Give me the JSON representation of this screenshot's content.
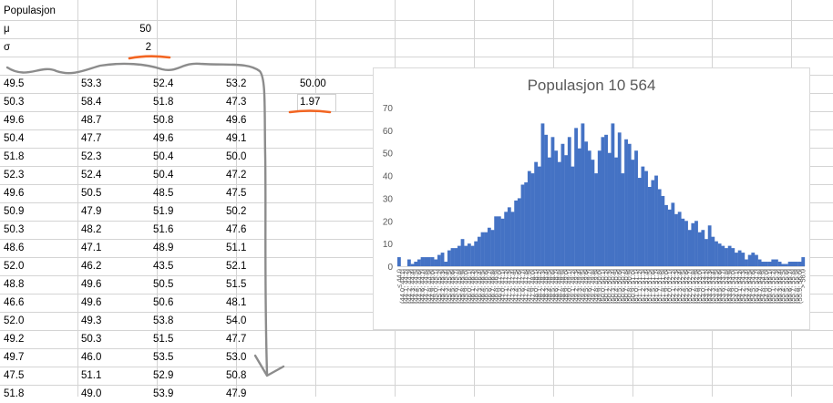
{
  "header": {
    "title_label": "Populasjon",
    "mu_label": "μ",
    "mu_value": "50",
    "sigma_label": "σ",
    "sigma_value": "2"
  },
  "table": {
    "rows": [
      [
        "49.5",
        "53.3",
        "52.4",
        "53.2"
      ],
      [
        "50.3",
        "58.4",
        "51.8",
        "47.3"
      ],
      [
        "49.6",
        "48.7",
        "50.8",
        "49.6"
      ],
      [
        "50.4",
        "47.7",
        "49.6",
        "49.1"
      ],
      [
        "51.8",
        "52.3",
        "50.4",
        "50.0"
      ],
      [
        "52.3",
        "52.4",
        "50.4",
        "47.2"
      ],
      [
        "49.6",
        "50.5",
        "48.5",
        "47.5"
      ],
      [
        "50.9",
        "47.9",
        "51.9",
        "50.2"
      ],
      [
        "50.3",
        "48.2",
        "51.6",
        "47.6"
      ],
      [
        "48.6",
        "47.1",
        "48.9",
        "51.1"
      ],
      [
        "52.0",
        "46.2",
        "43.5",
        "52.1"
      ],
      [
        "48.8",
        "49.6",
        "50.5",
        "51.5"
      ],
      [
        "46.6",
        "49.6",
        "50.6",
        "48.1"
      ],
      [
        "52.0",
        "49.3",
        "53.8",
        "54.0"
      ],
      [
        "49.2",
        "50.3",
        "51.5",
        "47.7"
      ],
      [
        "49.7",
        "46.0",
        "53.5",
        "53.0"
      ],
      [
        "47.5",
        "51.1",
        "52.9",
        "50.8"
      ],
      [
        "51.8",
        "49.0",
        "53.9",
        "47.9"
      ]
    ]
  },
  "stats": {
    "mean": "50.00",
    "sd": "1.97"
  },
  "annotation_colors": {
    "underline": "#f26522",
    "pencil_arrow": "#8c8c8c"
  },
  "chart_data": {
    "type": "bar",
    "title": "Populasjon 10 564",
    "color": "#4472c4",
    "ylim": [
      0,
      70
    ],
    "yticks": [
      "0",
      "10",
      "20",
      "30",
      "40",
      "50",
      "60",
      "70"
    ],
    "grid": false,
    "categories": [
      "≤ 44.0",
      "(44.0, 44.1]",
      "(44.1, 44.2]",
      "(44.2, 44.3]",
      "(44.3, 44.4]",
      "(44.4, 44.5]",
      "(44.5, 44.6]",
      "(44.6, 44.7]",
      "(44.7, 44.8]",
      "(44.8, 44.9]",
      "(44.9, 45.0]",
      "(45.0, 45.1]",
      "(45.1, 45.2]",
      "(45.2, 45.3]",
      "(45.3, 45.4]",
      "(45.4, 45.5]",
      "(45.5, 45.6]",
      "(45.6, 45.7]",
      "(45.7, 45.8]",
      "(45.8, 45.9]",
      "(45.9, 46.0]",
      "(46.0, 46.1]",
      "(46.1, 46.2]",
      "(46.2, 46.3]",
      "(46.3, 46.4]",
      "(46.4, 46.5]",
      "(46.5, 46.6]",
      "(46.6, 46.7]",
      "(46.7, 46.8]",
      "(46.8, 46.9]",
      "(46.9, 47.0]",
      "(47.0, 47.1]",
      "(47.1, 47.2]",
      "(47.2, 47.3]",
      "(47.3, 47.4]",
      "(47.4, 47.5]",
      "(47.5, 47.6]",
      "(47.6, 47.7]",
      "(47.7, 47.8]",
      "(47.8, 47.9]",
      "(47.9, 48.0]",
      "(48.0, 48.1]",
      "(48.1, 48.2]",
      "(48.2, 48.3]",
      "(48.3, 48.4]",
      "(48.4, 48.5]",
      "(48.5, 48.6]",
      "(48.6, 48.7]",
      "(48.7, 48.8]",
      "(48.8, 48.9]",
      "(48.9, 49.0]",
      "(49.0, 49.1]",
      "(49.1, 49.2]",
      "(49.2, 49.3]",
      "(49.3, 49.4]",
      "(49.4, 49.5]",
      "(49.5, 49.6]",
      "(49.6, 49.7]",
      "(49.7, 49.8]",
      "(49.8, 49.9]",
      "(49.9, 50.0]",
      "(50.0, 50.1]",
      "(50.1, 50.2]",
      "(50.2, 50.3]",
      "(50.3, 50.4]",
      "(50.4, 50.5]",
      "(50.5, 50.6]",
      "(50.6, 50.7]",
      "(50.7, 50.8]",
      "(50.8, 50.9]",
      "(50.9, 51.0]",
      "(51.0, 51.1]",
      "(51.1, 51.2]",
      "(51.2, 51.3]",
      "(51.3, 51.4]",
      "(51.4, 51.5]",
      "(51.5, 51.6]",
      "(51.6, 51.7]",
      "(51.7, 51.8]",
      "(51.8, 51.9]",
      "(51.9, 52.0]",
      "(52.0, 52.1]",
      "(52.1, 52.2]",
      "(52.2, 52.3]",
      "(52.3, 52.4]",
      "(52.4, 52.5]",
      "(52.5, 52.6]",
      "(52.6, 52.7]",
      "(52.7, 52.8]",
      "(52.8, 52.9]",
      "(52.9, 53.0]",
      "(53.0, 53.1]",
      "(53.1, 53.2]",
      "(53.2, 53.3]",
      "(53.3, 53.4]",
      "(53.4, 53.5]",
      "(53.5, 53.6]",
      "(53.6, 53.7]",
      "(53.7, 53.8]",
      "(53.8, 53.9]",
      "(53.9, 54.0]",
      "(54.0, 54.1]",
      "(54.1, 54.2]",
      "(54.2, 54.3]",
      "(54.3, 54.4]",
      "(54.4, 54.5]",
      "(54.5, 54.6]",
      "(54.6, 54.7]",
      "(54.7, 54.8]",
      "(54.8, 54.9]",
      "(54.9, 55.0]",
      "(55.0, 55.1]",
      "(55.1, 55.2]",
      "(55.2, 55.3]",
      "(55.3, 55.4]",
      "(55.4, 55.5]",
      "(55.5, 55.6]",
      "(55.6, 55.7]",
      "(55.7, 55.8]",
      "(55.8, 55.9]",
      "(55.9, 56.0]",
      "> 56.0"
    ],
    "values": [
      4,
      0,
      0,
      3,
      1,
      2,
      3,
      4,
      4,
      4,
      4,
      3,
      5,
      6,
      2,
      7,
      8,
      8,
      9,
      12,
      9,
      10,
      9,
      11,
      13,
      15,
      15,
      17,
      16,
      22,
      22,
      21,
      24,
      26,
      24,
      29,
      30,
      36,
      37,
      42,
      41,
      46,
      44,
      63,
      58,
      48,
      57,
      51,
      46,
      54,
      49,
      57,
      44,
      61,
      52,
      63,
      55,
      51,
      47,
      41,
      51,
      57,
      58,
      50,
      63,
      48,
      59,
      41,
      56,
      54,
      47,
      51,
      39,
      44,
      42,
      35,
      38,
      40,
      34,
      31,
      27,
      25,
      28,
      23,
      24,
      21,
      20,
      16,
      19,
      20,
      15,
      16,
      12,
      18,
      13,
      11,
      10,
      9,
      8,
      9,
      8,
      6,
      7,
      6,
      3,
      5,
      6,
      5,
      3,
      2,
      2,
      2,
      3,
      3,
      2,
      1,
      1,
      2,
      2,
      2,
      2,
      4
    ]
  }
}
